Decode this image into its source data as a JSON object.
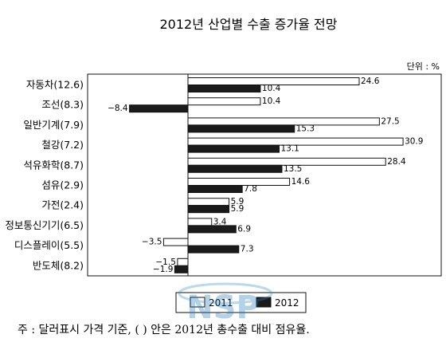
{
  "chart_data": {
    "type": "bar",
    "orientation": "horizontal",
    "title": "2012년 산업별 수출 증가율 전망",
    "unit_label": "단위 : %",
    "categories": [
      "자동차(12.6)",
      "조선(8.3)",
      "일반기계(7.9)",
      "철강(7.2)",
      "석유화학(8.7)",
      "섬유(2.9)",
      "가전(2.4)",
      "정보통신기기(6.5)",
      "디스플레이(5.5)",
      "반도체(8.2)"
    ],
    "series": [
      {
        "name": "2011",
        "color": "#ffffff",
        "values": [
          24.6,
          10.4,
          27.5,
          30.9,
          28.4,
          14.6,
          5.9,
          3.4,
          -3.5,
          -1.5
        ],
        "labels": [
          "24.6",
          "10.4",
          "27.5",
          "30.9",
          "28.4",
          "14.6",
          "5.9",
          "3.4",
          "−3.5",
          "−1.5"
        ]
      },
      {
        "name": "2012",
        "color": "#1a1a1a",
        "values": [
          10.4,
          -8.4,
          15.3,
          13.1,
          13.5,
          7.8,
          5.9,
          6.9,
          7.3,
          -1.9
        ],
        "labels": [
          "10.4",
          "−8.4",
          "15.3",
          "13.1",
          "13.5",
          "7.8",
          "5.9",
          "6.9",
          "7.3",
          "−1.9"
        ]
      }
    ],
    "xlim": [
      -17.3,
      33.5
    ],
    "grid": false,
    "legend_position": "bottom"
  },
  "footnote": "주 : 달러표시 가격 기준, ( ) 안은 2012년 총수출 대비 점유율.",
  "watermark": "NSP"
}
